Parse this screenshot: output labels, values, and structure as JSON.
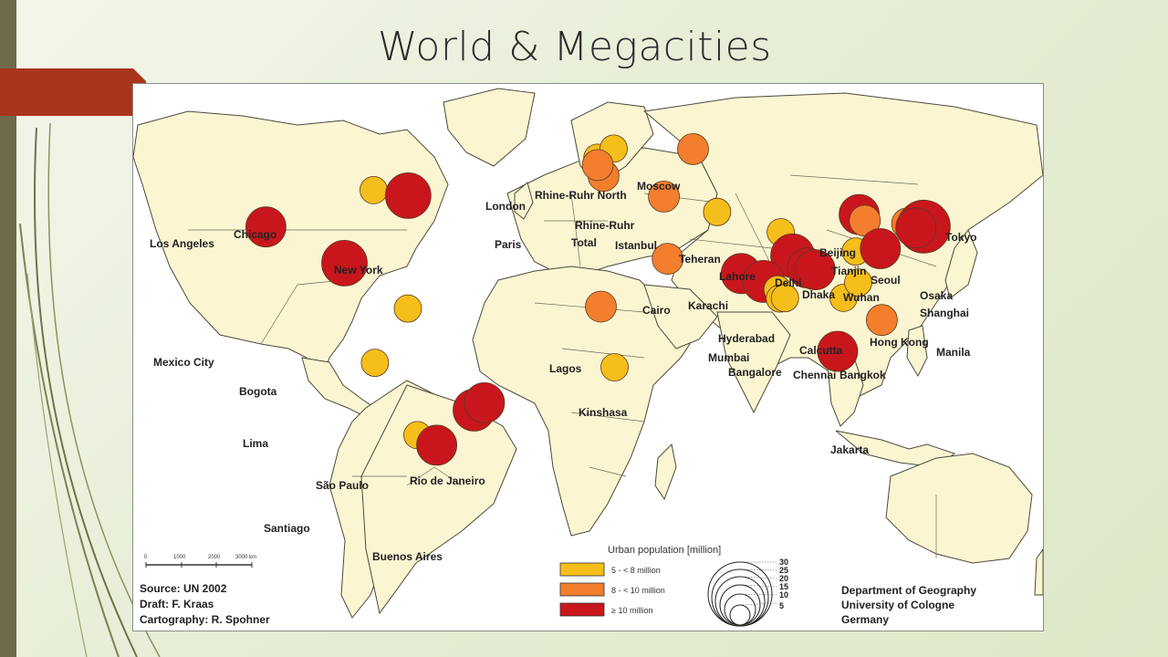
{
  "slide": {
    "title": "World & Megacities",
    "colors": {
      "background": "#e8efd9",
      "left_bar": "#6e6a4c",
      "accent_tab": "#a9351c"
    }
  },
  "map": {
    "colors": {
      "ocean": "#ffffff",
      "land": "#fbf5d2",
      "borders": "#4a4a3a",
      "small": "#f6be1a",
      "medium": "#f27e2e",
      "large": "#c8161c"
    },
    "cities": [
      {
        "name": "Los Angeles",
        "category": "large",
        "lon": -118.2,
        "lat": 34.1
      },
      {
        "name": "Chicago",
        "category": "small",
        "lon": -87.6,
        "lat": 41.9
      },
      {
        "name": "New York",
        "category": "large",
        "lon": -74.0,
        "lat": 40.7
      },
      {
        "name": "Mexico City",
        "category": "large",
        "lon": -99.1,
        "lat": 19.4
      },
      {
        "name": "Bogota",
        "category": "small",
        "lon": -74.1,
        "lat": 4.7
      },
      {
        "name": "Lima",
        "category": "small",
        "lon": -77.0,
        "lat": -12.0
      },
      {
        "name": "São Paulo",
        "category": "large",
        "lon": -46.6,
        "lat": -23.5
      },
      {
        "name": "Rio de Janeiro",
        "category": "large",
        "lon": -43.2,
        "lat": -22.9
      },
      {
        "name": "Santiago",
        "category": "small",
        "lon": -70.7,
        "lat": -33.4
      },
      {
        "name": "Buenos Aires",
        "category": "large",
        "lon": -58.4,
        "lat": -34.6
      },
      {
        "name": "London",
        "category": "small",
        "lon": -0.1,
        "lat": 51.5
      },
      {
        "name": "Paris",
        "category": "medium",
        "lon": 2.3,
        "lat": 48.9
      },
      {
        "name": "Rhine-Ruhr North",
        "category": "small",
        "lon": 7.0,
        "lat": 51.5
      },
      {
        "name": "Rhine-Ruhr Total",
        "category": "medium",
        "lon": 7.2,
        "lat": 51.2
      },
      {
        "name": "Moscow",
        "category": "medium",
        "lon": 37.6,
        "lat": 55.8
      },
      {
        "name": "Istanbul",
        "category": "medium",
        "lon": 29.0,
        "lat": 41.0
      },
      {
        "name": "Cairo",
        "category": "medium",
        "lon": 31.2,
        "lat": 30.0
      },
      {
        "name": "Lagos",
        "category": "medium",
        "lon": 3.4,
        "lat": 6.5
      },
      {
        "name": "Kinshasa",
        "category": "small",
        "lon": 15.3,
        "lat": -4.3
      },
      {
        "name": "Teheran",
        "category": "small",
        "lon": 51.4,
        "lat": 35.7
      },
      {
        "name": "Karachi",
        "category": "large",
        "lon": 67.0,
        "lat": 24.9
      },
      {
        "name": "Lahore",
        "category": "small",
        "lon": 74.3,
        "lat": 31.5
      },
      {
        "name": "Delhi",
        "category": "large",
        "lon": 77.2,
        "lat": 28.6
      },
      {
        "name": "Mumbai",
        "category": "large",
        "lon": 72.9,
        "lat": 19.1
      },
      {
        "name": "Hyderabad",
        "category": "small",
        "lon": 78.5,
        "lat": 17.4
      },
      {
        "name": "Bangalore",
        "category": "small",
        "lon": 77.6,
        "lat": 13.0
      },
      {
        "name": "Chennai",
        "category": "small",
        "lon": 80.3,
        "lat": 13.1
      },
      {
        "name": "Calcutta",
        "category": "large",
        "lon": 88.4,
        "lat": 22.6
      },
      {
        "name": "Dhaka",
        "category": "large",
        "lon": 90.4,
        "lat": 23.8
      },
      {
        "name": "Bangkok",
        "category": "small",
        "lon": 100.5,
        "lat": 13.8
      },
      {
        "name": "Beijing",
        "category": "large",
        "lon": 116.4,
        "lat": 39.9
      },
      {
        "name": "Tianjin",
        "category": "medium",
        "lon": 117.2,
        "lat": 39.1
      },
      {
        "name": "Seoul",
        "category": "medium",
        "lon": 127.0,
        "lat": 37.6
      },
      {
        "name": "Wuhan",
        "category": "small",
        "lon": 114.3,
        "lat": 30.6
      },
      {
        "name": "Shanghai",
        "category": "large",
        "lon": 121.5,
        "lat": 31.2
      },
      {
        "name": "Hong Kong",
        "category": "small",
        "lon": 114.2,
        "lat": 22.3
      },
      {
        "name": "Manila",
        "category": "medium",
        "lon": 121.0,
        "lat": 14.6
      },
      {
        "name": "Tokyo",
        "category": "large",
        "lon": 139.7,
        "lat": 35.7
      },
      {
        "name": "Osaka",
        "category": "large",
        "lon": 135.5,
        "lat": 34.7
      },
      {
        "name": "Jakarta",
        "category": "large",
        "lon": 106.8,
        "lat": -6.2
      }
    ],
    "labels": {
      "los_angeles": "Los Angeles",
      "chicago": "Chicago",
      "new_york": "New York",
      "mexico_city": "Mexico City",
      "bogota": "Bogota",
      "lima": "Lima",
      "sao_paulo": "São Paulo",
      "rio": "Rio de Janeiro",
      "santiago": "Santiago",
      "buenos_aires": "Buenos Aires",
      "london": "London",
      "rhine_ruhr_north": "Rhine-Ruhr North",
      "moscow": "Moscow",
      "paris": "Paris",
      "rhine_ruhr": "Rhine-Ruhr",
      "total": "Total",
      "istanbul": "Istanbul",
      "cairo": "Cairo",
      "lagos": "Lagos",
      "kinshasa": "Kinshasa",
      "teheran": "Teheran",
      "lahore": "Lahore",
      "karachi": "Karachi",
      "delhi": "Delhi",
      "dhaka": "Dhaka",
      "hyderabad": "Hyderabad",
      "mumbai": "Mumbai",
      "calcutta": "Calcutta",
      "bangalore": "Bangalore",
      "chennai": "Chennai",
      "bangkok": "Bangkok",
      "beijing": "Beijing",
      "tianjin": "Tianjin",
      "seoul": "Seoul",
      "wuhan": "Wuhan",
      "osaka": "Osaka",
      "shanghai": "Shanghai",
      "hong_kong": "Hong Kong",
      "manila": "Manila",
      "tokyo": "Tokyo",
      "jakarta": "Jakarta"
    },
    "legend": {
      "title": "Urban population [million]",
      "items": [
        {
          "label": "5 - < 8 million",
          "color": "#f6be1a"
        },
        {
          "label": "8 - < 10 million",
          "color": "#f27e2e"
        },
        {
          "label": "≥ 10 million",
          "color": "#c8161c"
        }
      ],
      "size_values": [
        "30",
        "25",
        "20",
        "15",
        "10",
        "5"
      ]
    },
    "scale": {
      "ticks": [
        "0",
        "1000",
        "2000",
        "3000 km"
      ]
    },
    "source": {
      "line1": "Source: UN 2002",
      "line2": "Draft: F. Kraas",
      "line3": "Cartography: R. Spohner"
    },
    "credit": {
      "line1": "Department of Geography",
      "line2": "University of Cologne",
      "line3": "Germany"
    }
  }
}
